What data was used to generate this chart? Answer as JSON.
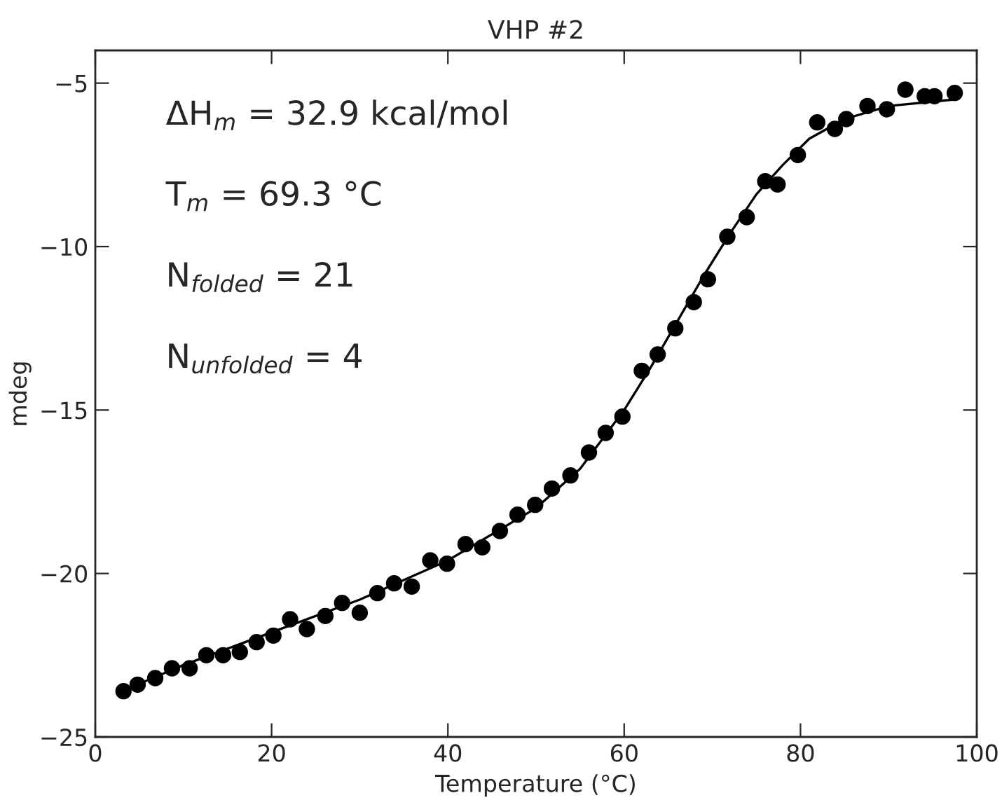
{
  "chart_data": {
    "type": "scatter",
    "title": "VHP #2",
    "xlabel": "Temperature (°C)",
    "ylabel": "mdeg",
    "annotations": [
      "ΔH$_{m}$ = 32.9 kcal/mol",
      "T$_{m}$ = 69.3 °C",
      "N$_{folded}$ = 21",
      "N$_{unfolded}$ = 4"
    ],
    "series": [
      {
        "color": "#000000",
        "marker": "circle",
        "x": [
          3.2,
          4.8,
          6.8,
          8.7,
          10.7,
          12.6,
          14.5,
          16.4,
          18.3,
          20.2,
          22.1,
          24.0,
          26.1,
          28.0,
          30.0,
          32.0,
          33.9,
          35.9,
          38.0,
          39.9,
          42.0,
          43.9,
          45.9,
          47.9,
          49.9,
          51.8,
          53.9,
          56.0,
          57.9,
          59.8,
          62.0,
          63.8,
          65.8,
          67.9,
          69.5,
          71.7,
          73.9,
          76.0,
          77.4,
          79.7,
          81.9,
          83.9,
          85.2,
          87.6,
          89.8,
          91.9,
          94.1,
          95.2,
          97.5
        ],
        "values": [
          -23.6,
          -23.4,
          -23.2,
          -22.9,
          -22.9,
          -22.5,
          -22.5,
          -22.4,
          -22.1,
          -21.9,
          -21.4,
          -21.7,
          -21.3,
          -20.9,
          -21.2,
          -20.6,
          -20.3,
          -20.4,
          -19.6,
          -19.7,
          -19.1,
          -19.2,
          -18.7,
          -18.2,
          -17.9,
          -17.4,
          -17.0,
          -16.3,
          -15.7,
          -15.2,
          -13.8,
          -13.3,
          -12.5,
          -11.7,
          -11.0,
          -9.7,
          -9.1,
          -8.0,
          -8.1,
          -7.2,
          -6.2,
          -6.4,
          -6.1,
          -5.7,
          -5.8,
          -5.2,
          -5.4,
          -5.4,
          -5.3
        ]
      },
      {
        "type": "line",
        "color": "#000000",
        "marker": "none",
        "line_style": "solid",
        "x": [
          3,
          10,
          20,
          30,
          40,
          50,
          55,
          60,
          63,
          66,
          69,
          72,
          75,
          78,
          81,
          85,
          90,
          97.5
        ],
        "values": [
          -23.6,
          -22.8,
          -21.8,
          -20.8,
          -19.6,
          -18.0,
          -16.8,
          -15.0,
          -13.7,
          -12.3,
          -10.9,
          -9.6,
          -8.4,
          -7.5,
          -6.7,
          -6.1,
          -5.7,
          -5.5
        ]
      }
    ],
    "xlim": [
      0,
      100
    ],
    "xticks": [
      0,
      20,
      40,
      60,
      80,
      100
    ],
    "ylim": [
      -25,
      -4
    ],
    "yticks": [
      {
        "value": -25,
        "label": "−25"
      },
      {
        "value": -20,
        "label": "−20"
      },
      {
        "value": -15,
        "label": "−15"
      },
      {
        "value": -10,
        "label": "−10"
      },
      {
        "value": -5,
        "label": "−5"
      }
    ],
    "grid": false,
    "legend": false
  }
}
